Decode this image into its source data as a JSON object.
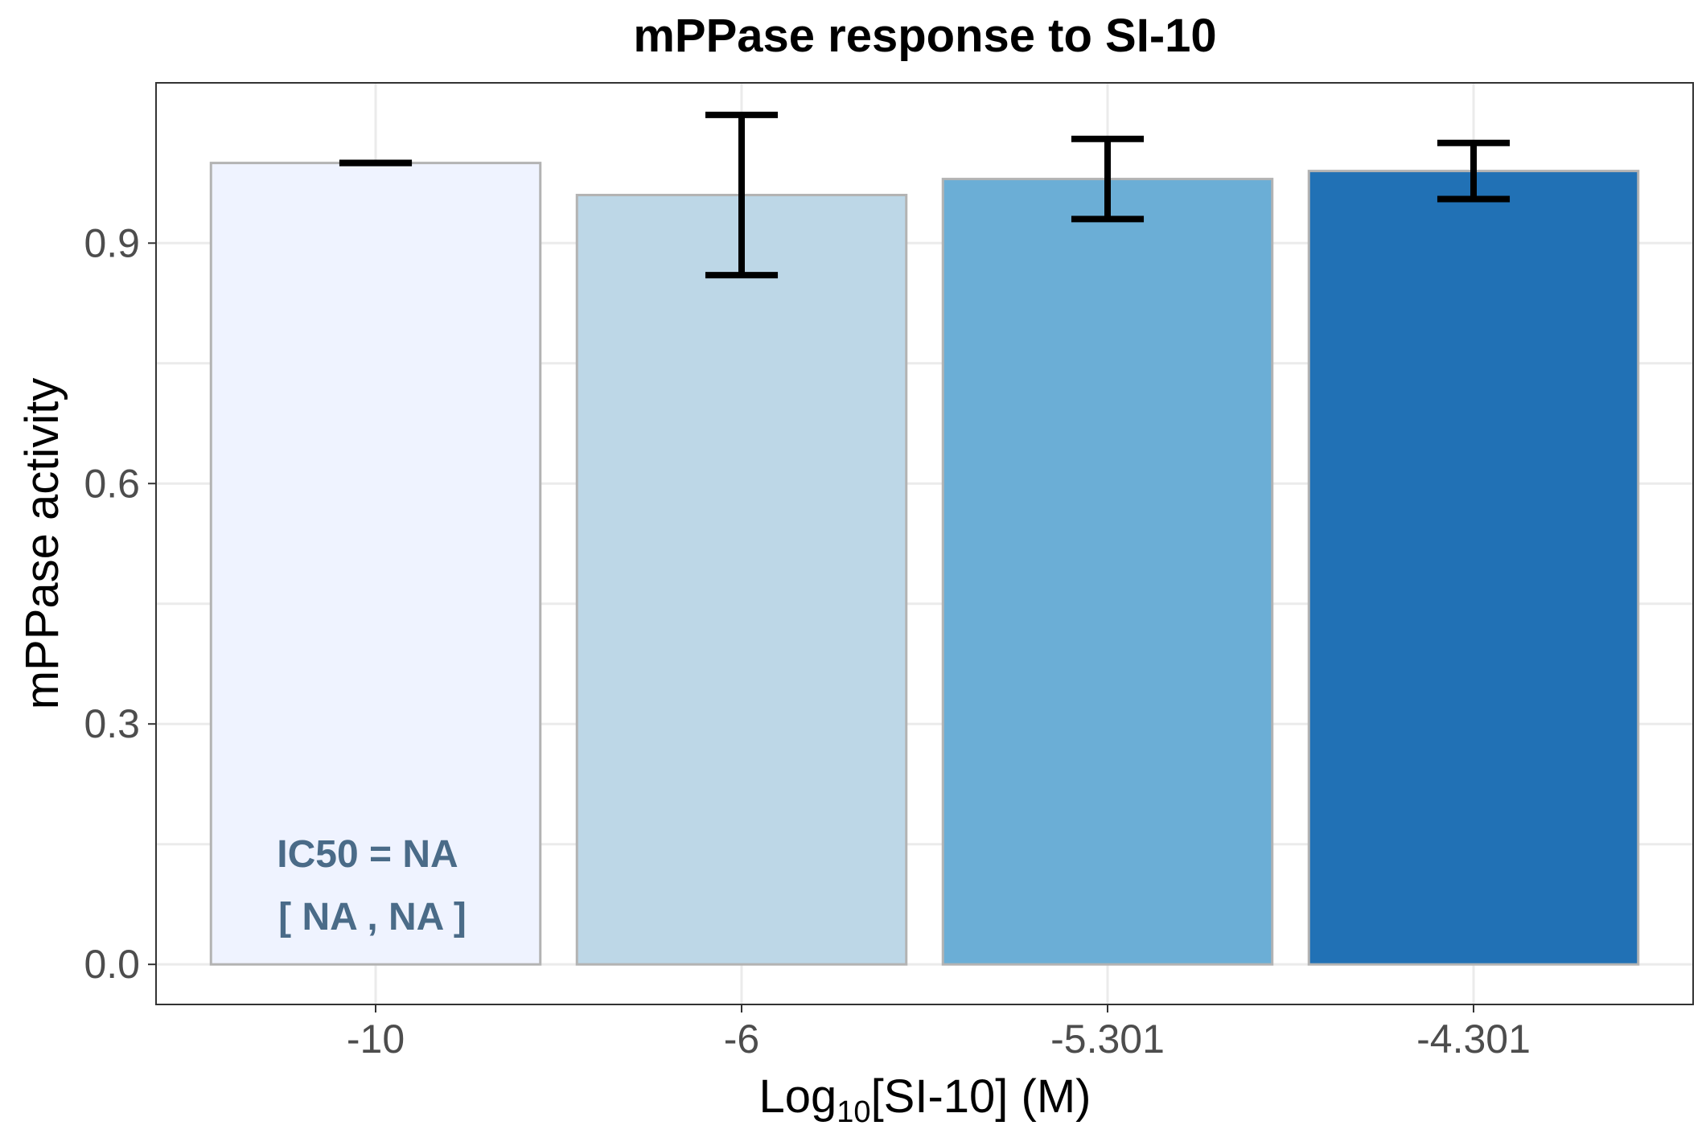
{
  "chart_data": {
    "type": "bar",
    "title": "mPPase response to SI-10",
    "xlabel": {
      "prefix": "Log",
      "subscript": "10",
      "suffix": "[SI-10] (M)"
    },
    "ylabel": "mPPase activity",
    "categories": [
      "-10",
      "-6",
      "-5.301",
      "-4.301"
    ],
    "values": [
      1.0,
      0.96,
      0.98,
      0.99
    ],
    "error_low": [
      1.0,
      0.86,
      0.93,
      0.955
    ],
    "error_high": [
      1.0,
      1.06,
      1.03,
      1.025
    ],
    "bar_colors": [
      "#eff3ff",
      "#bdd7e7",
      "#6baed6",
      "#2171b5"
    ],
    "bar_outline": "#b3b3b3",
    "ylim": [
      -0.05,
      1.1
    ],
    "yticks": [
      0.0,
      0.3,
      0.6,
      0.9
    ],
    "ytick_labels": [
      "0.0",
      "0.3",
      "0.6",
      "0.9"
    ],
    "grid": true,
    "annotation": {
      "line1": "IC50 = NA",
      "line2": "[ NA , NA ]",
      "color": "#4a6b88"
    }
  }
}
